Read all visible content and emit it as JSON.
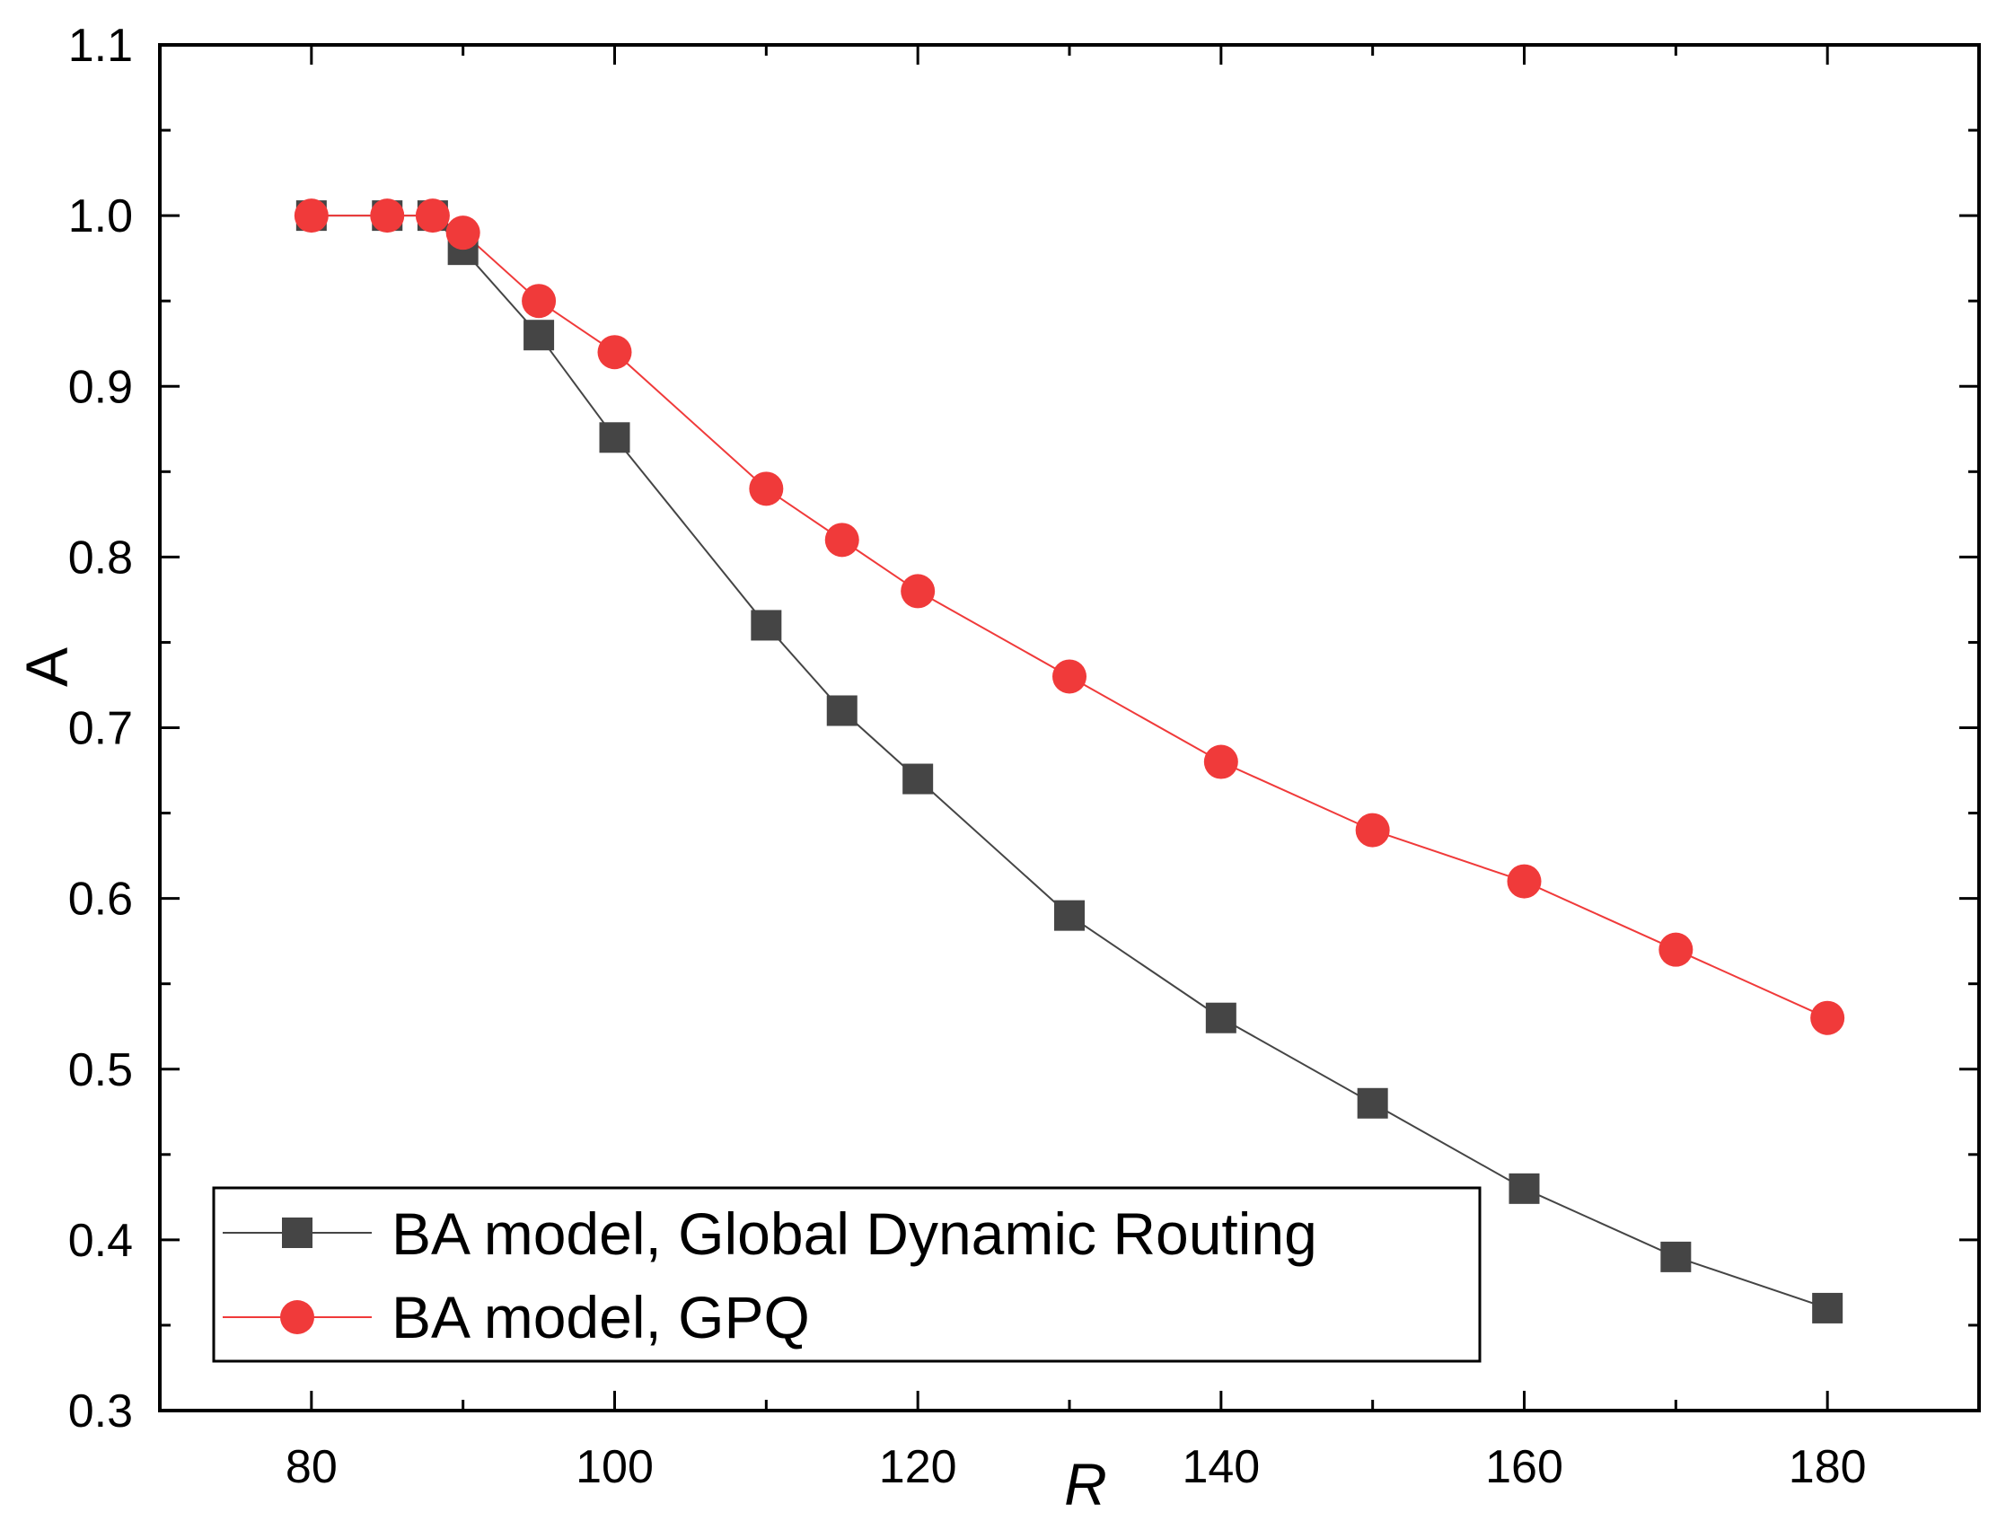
{
  "chart_data": {
    "type": "line",
    "title": "",
    "xlabel": "R",
    "ylabel": "A",
    "xlim": [
      70,
      190
    ],
    "ylim": [
      0.3,
      1.1
    ],
    "x_ticks": [
      80,
      100,
      120,
      140,
      160,
      180
    ],
    "x_tick_labels": [
      "80",
      "100",
      "120",
      "140",
      "160",
      "180"
    ],
    "y_ticks": [
      0.3,
      0.4,
      0.5,
      0.6,
      0.7,
      0.8,
      0.9,
      1.0,
      1.1
    ],
    "y_tick_labels": [
      "0.3",
      "0.4",
      "0.5",
      "0.6",
      "0.7",
      "0.8",
      "0.9",
      "1.0",
      "1.1"
    ],
    "grid": false,
    "legend_position": "bottom-left",
    "x": [
      80,
      85,
      88,
      90,
      95,
      100,
      110,
      115,
      120,
      130,
      140,
      150,
      160,
      170,
      180
    ],
    "series": [
      {
        "name": "BA model, Global Dynamic Routing",
        "color": "#454545",
        "marker": "square",
        "values": [
          1.0,
          1.0,
          1.0,
          0.98,
          0.93,
          0.87,
          0.76,
          0.71,
          0.67,
          0.59,
          0.53,
          0.48,
          0.43,
          0.39,
          0.36
        ]
      },
      {
        "name": "BA model, GPQ",
        "color": "#f03a3a",
        "marker": "circle",
        "values": [
          1.0,
          1.0,
          1.0,
          0.99,
          0.95,
          0.92,
          0.84,
          0.81,
          0.78,
          0.73,
          0.68,
          0.64,
          0.61,
          0.57,
          0.53
        ]
      }
    ]
  }
}
